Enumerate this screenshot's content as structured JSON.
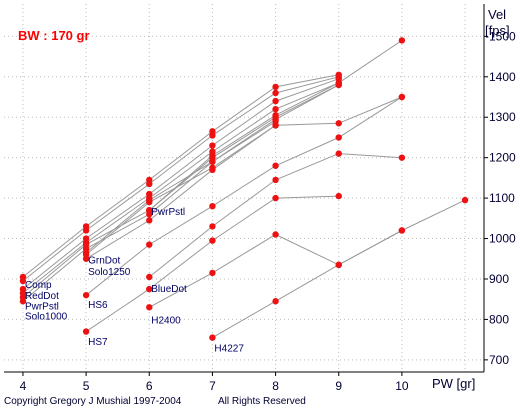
{
  "chart_data": {
    "type": "line",
    "title": "BW : 170 gr",
    "xlabel": "PW [gr]",
    "ylabel_top": "Vel",
    "ylabel_unit": "[fps]",
    "xlim": [
      3.7,
      11.3
    ],
    "ylim": [
      670,
      1580
    ],
    "x_ticks": [
      4,
      5,
      6,
      7,
      8,
      9,
      10
    ],
    "y_ticks": [
      700,
      800,
      900,
      1000,
      1100,
      1200,
      1300,
      1400,
      1500
    ],
    "grid": true,
    "colors": {
      "background": "#ffffff",
      "grid": "#bbbbbb",
      "line": "#999999",
      "marker": "#ee1111",
      "title": "#ff0000",
      "text": "#000033"
    },
    "series": [
      {
        "name": "Comp",
        "x": [
          4,
          5,
          6,
          7,
          8,
          9
        ],
        "y": [
          905,
          1030,
          1145,
          1265,
          1375,
          1405
        ]
      },
      {
        "name": "",
        "x": [
          4,
          5,
          6,
          7,
          8,
          9
        ],
        "y": [
          895,
          1020,
          1135,
          1255,
          1360,
          1400
        ]
      },
      {
        "name": "RedDot",
        "x": [
          4,
          5,
          6,
          7,
          8,
          9
        ],
        "y": [
          875,
          1000,
          1110,
          1230,
          1340,
          1395
        ]
      },
      {
        "name": "",
        "x": [
          4,
          5,
          6,
          7,
          8,
          9,
          10
        ],
        "y": [
          865,
          990,
          1100,
          1215,
          1320,
          1385,
          1490
        ]
      },
      {
        "name": "PwrPstl",
        "x": [
          4,
          5,
          6,
          7,
          8,
          9
        ],
        "y": [
          855,
          985,
          1070,
          1200,
          1300,
          1380
        ]
      },
      {
        "name": "",
        "x": [
          5,
          6,
          7,
          8
        ],
        "y": [
          960,
          1090,
          1175,
          1280
        ]
      },
      {
        "name": "Solo1000",
        "x": [
          4,
          5,
          6,
          7,
          8
        ],
        "y": [
          845,
          975,
          1060,
          1190,
          1290
        ]
      },
      {
        "name": "GrnDot",
        "x": [
          5,
          6,
          7,
          8,
          9
        ],
        "y": [
          965,
          1095,
          1190,
          1295,
          1380
        ]
      },
      {
        "name": "Solo1250",
        "x": [
          5,
          6,
          7,
          8,
          9,
          10
        ],
        "y": [
          950,
          1045,
          1170,
          1280,
          1285,
          1350
        ]
      },
      {
        "name": "PwrPstl",
        "x": [
          6,
          7,
          8,
          9
        ],
        "y": [
          1070,
          1205,
          1305,
          1385
        ]
      },
      {
        "name": "HS6",
        "x": [
          5,
          6,
          7,
          8,
          9,
          10
        ],
        "y": [
          860,
          985,
          1080,
          1180,
          1250,
          1350
        ]
      },
      {
        "name": "BlueDot",
        "x": [
          6,
          7,
          8,
          9,
          10
        ],
        "y": [
          905,
          1030,
          1145,
          1210,
          1200
        ]
      },
      {
        "name": "HS7",
        "x": [
          5,
          6,
          7,
          8,
          9
        ],
        "y": [
          770,
          875,
          995,
          1100,
          1105
        ]
      },
      {
        "name": "H2400",
        "x": [
          6,
          7,
          8,
          9,
          10
        ],
        "y": [
          830,
          915,
          1010,
          935,
          1020
        ]
      },
      {
        "name": "H4227",
        "x": [
          7,
          8,
          9,
          10,
          11
        ],
        "y": [
          755,
          845,
          935,
          1020,
          1095
        ]
      }
    ],
    "labels": [
      {
        "text": "Comp",
        "x": 4,
        "y": 887
      },
      {
        "text": "RedDot",
        "x": 4,
        "y": 860
      },
      {
        "text": "PwrPstl",
        "x": 4,
        "y": 835
      },
      {
        "text": "Solo1000",
        "x": 4,
        "y": 810
      },
      {
        "text": "GrnDot",
        "x": 5,
        "y": 948
      },
      {
        "text": "Solo1250",
        "x": 5,
        "y": 920
      },
      {
        "text": "PwrPstl",
        "x": 6,
        "y": 1068
      },
      {
        "text": "HS6",
        "x": 5,
        "y": 838
      },
      {
        "text": "BlueDot",
        "x": 6,
        "y": 878
      },
      {
        "text": "HS7",
        "x": 5,
        "y": 747
      },
      {
        "text": "H2400",
        "x": 6,
        "y": 800
      },
      {
        "text": "H4227",
        "x": 7,
        "y": 730
      }
    ]
  },
  "footer": {
    "copyright": "Copyright Gregory J  Mushial 1997-2004",
    "rights": "All Rights Reserved"
  }
}
